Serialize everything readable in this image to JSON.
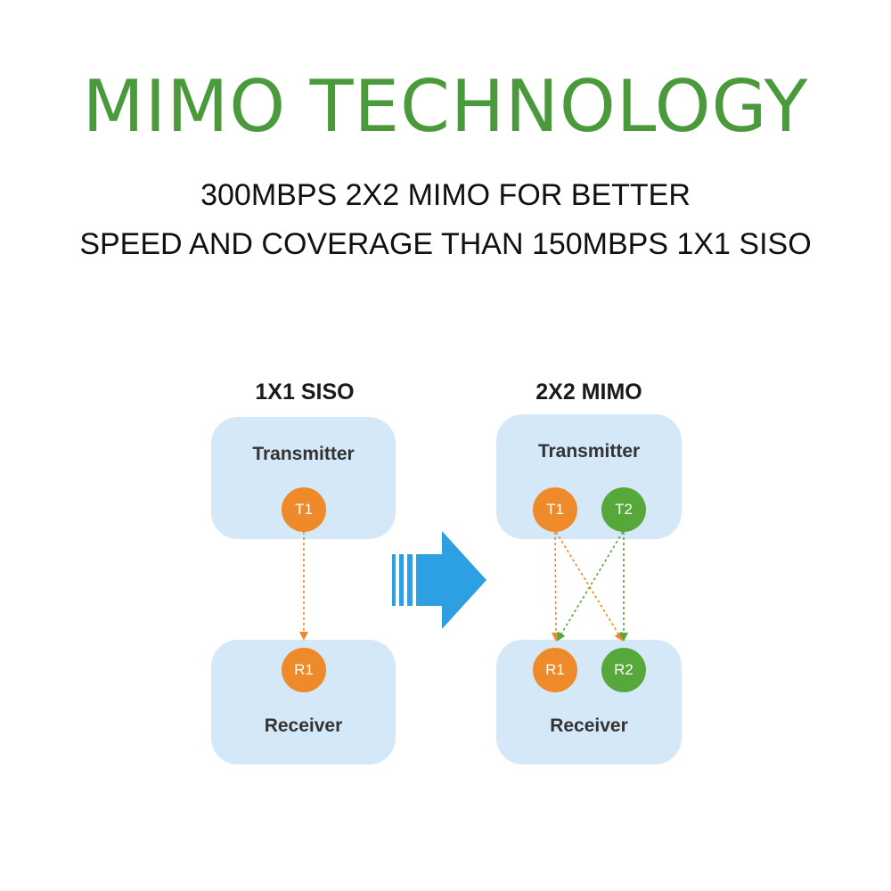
{
  "header": {
    "title": "MIMO TECHNOLOGY",
    "subtitle_line1": "300MBPS 2X2 MIMO FOR BETTER",
    "subtitle_line2": "SPEED AND COVERAGE THAN 150MBPS 1X1 SISO"
  },
  "colors": {
    "title_green": "#4a9a3c",
    "box_blue": "#d4e8f7",
    "node_orange": "#ee8a2a",
    "node_green": "#56a83a",
    "arrow_blue": "#2d9fe3"
  },
  "siso": {
    "heading": "1X1 SISO",
    "transmitter_label": "Transmitter",
    "receiver_label": "Receiver",
    "tx_node": "T1",
    "rx_node": "R1"
  },
  "mimo": {
    "heading": "2X2 MIMO",
    "transmitter_label": "Transmitter",
    "receiver_label": "Receiver",
    "tx_nodes": [
      "T1",
      "T2"
    ],
    "rx_nodes": [
      "R1",
      "R2"
    ]
  },
  "center_arrow_icon": "right-arrow-icon"
}
